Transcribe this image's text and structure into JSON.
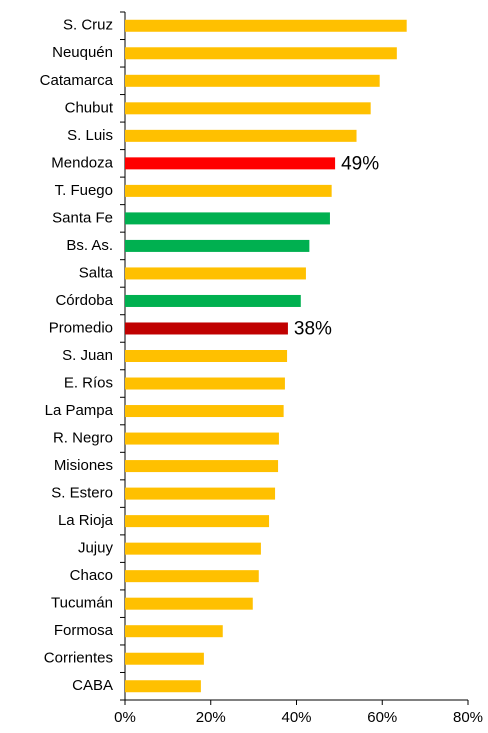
{
  "chart_data": {
    "type": "barh",
    "categories": [
      "S. Cruz",
      "Neuquén",
      "Catamarca",
      "Chubut",
      "S. Luis",
      "Mendoza",
      "T. Fuego",
      "Santa Fe",
      "Bs. As.",
      "Salta",
      "Córdoba",
      "Promedio",
      "S. Juan",
      "E. Ríos",
      "La Pampa",
      "R. Negro",
      "Misiones",
      "S. Estero",
      "La Rioja",
      "Jujuy",
      "Chaco",
      "Tucumán",
      "Formosa",
      "Corrientes",
      "CABA"
    ],
    "values": [
      65.7,
      63.4,
      59.4,
      57.3,
      54,
      49,
      48.2,
      47.8,
      43,
      42.2,
      41,
      38,
      37.8,
      37.3,
      37,
      35.9,
      35.7,
      35,
      33.6,
      31.7,
      31.2,
      29.8,
      22.8,
      18.4,
      17.7
    ],
    "value_labels": [
      null,
      null,
      null,
      null,
      null,
      "49%",
      null,
      null,
      null,
      null,
      null,
      "38%",
      null,
      null,
      null,
      null,
      null,
      null,
      null,
      null,
      null,
      null,
      null,
      null,
      null
    ],
    "colors": [
      "#ffc000",
      "#ffc000",
      "#ffc000",
      "#ffc000",
      "#ffc000",
      "#ff0000",
      "#ffc000",
      "#00b050",
      "#00b050",
      "#ffc000",
      "#00b050",
      "#c00000",
      "#ffc000",
      "#ffc000",
      "#ffc000",
      "#ffc000",
      "#ffc000",
      "#ffc000",
      "#ffc000",
      "#ffc000",
      "#ffc000",
      "#ffc000",
      "#ffc000",
      "#ffc000",
      "#ffc000"
    ],
    "xlim": [
      0,
      80
    ],
    "xticks": [
      {
        "value": 0,
        "label": "0%"
      },
      {
        "value": 20,
        "label": "20%"
      },
      {
        "value": 40,
        "label": "40%"
      },
      {
        "value": 60,
        "label": "60%"
      },
      {
        "value": 80,
        "label": "80%"
      }
    ]
  }
}
